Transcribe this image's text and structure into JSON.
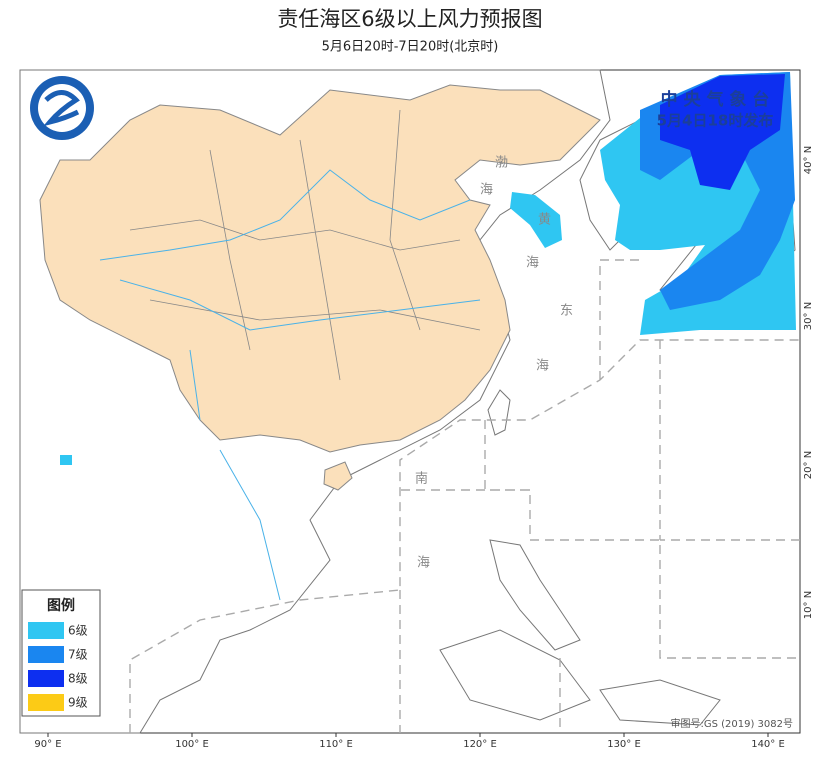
{
  "header": {
    "title": "责任海区6级以上风力预报图",
    "subtitle": "5月6日20时-7日20时(北京时)"
  },
  "issuer": {
    "name": "中 央 气 象 台",
    "time": "5月4日18时发布"
  },
  "legend": {
    "title": "图例",
    "items": [
      {
        "label": "6级",
        "color": "#2fc6f2"
      },
      {
        "label": "7级",
        "color": "#1a86f0"
      },
      {
        "label": "8级",
        "color": "#0d2ff0"
      },
      {
        "label": "9级",
        "color": "#fccb16"
      }
    ]
  },
  "axes": {
    "lon_labels": [
      "90° E",
      "100° E",
      "110° E",
      "120° E",
      "130° E",
      "140° E"
    ],
    "lat_labels": [
      "40° N",
      "30° N",
      "20° N",
      "10° N"
    ]
  },
  "sea_labels": [
    "渤",
    "海",
    "黄",
    "海",
    "东",
    "海",
    "南",
    "海"
  ],
  "footer": "审图号:GS (2019) 3082号"
}
